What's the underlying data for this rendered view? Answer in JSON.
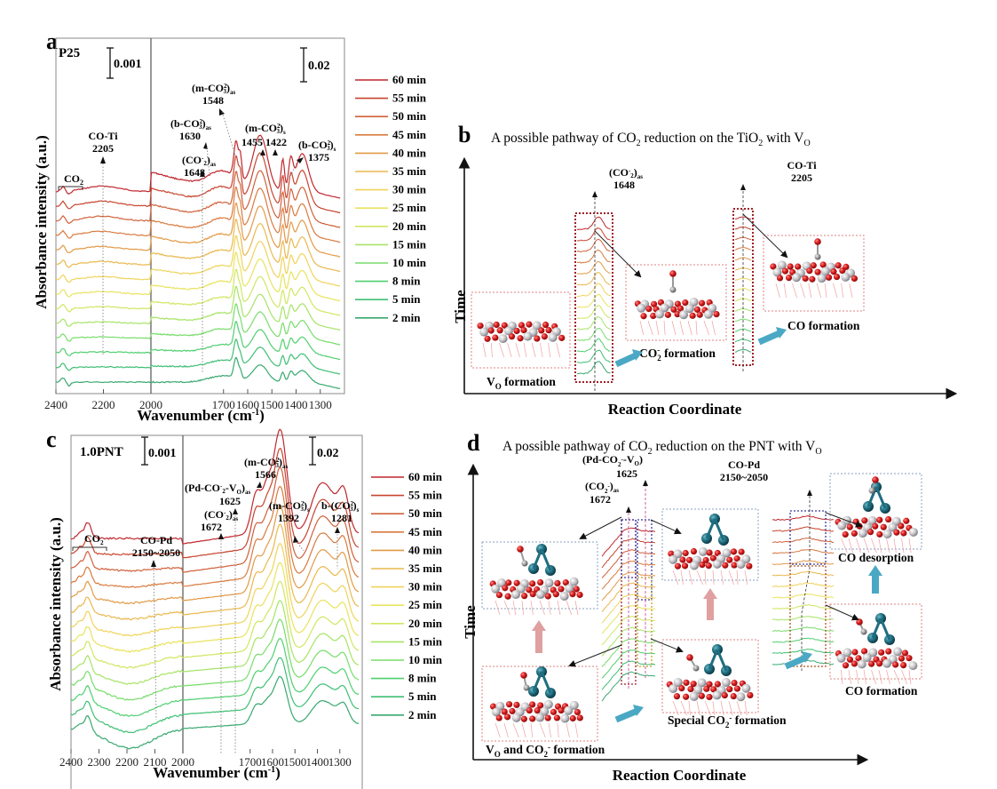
{
  "figure": {
    "panels": [
      "a",
      "b",
      "c",
      "d"
    ]
  },
  "time_series_labels": [
    "60 min",
    "55 min",
    "50 min",
    "45 min",
    "40 min",
    "35 min",
    "30 min",
    "25 min",
    "20 min",
    "15 min",
    "10 min",
    "8 min",
    "5 min",
    "2 min"
  ],
  "series_colors": [
    "#c0272d",
    "#c7452f",
    "#d0603a",
    "#d97a3e",
    "#e29a47",
    "#eab84e",
    "#f0d35a",
    "#e9e35c",
    "#cfe761",
    "#a6e466",
    "#78dc6b",
    "#4fcf6f",
    "#3fbf74",
    "#37a86e"
  ],
  "chart_data": [
    {
      "type": "line",
      "panel": "a",
      "sample": "P25",
      "title": "",
      "xlabel": "Wavenumber (cm-1)",
      "ylabel": "Absorbance intensity (a.u.)",
      "x_segments": [
        {
          "range": [
            2400,
            2000
          ],
          "ticks": [
            2400,
            2200,
            2000
          ],
          "scale_bar": "0.001"
        },
        {
          "range": [
            2000,
            1200
          ],
          "ticks": [
            1700,
            1600,
            1500,
            1400,
            1300
          ],
          "scale_bar": "0.02"
        }
      ],
      "legend": "right",
      "series_names": [
        "60 min",
        "55 min",
        "50 min",
        "45 min",
        "40 min",
        "35 min",
        "30 min",
        "25 min",
        "20 min",
        "15 min",
        "10 min",
        "8 min",
        "5 min",
        "2 min"
      ],
      "annotations": [
        {
          "label": "CO2",
          "x_range": [
            2400,
            2300
          ]
        },
        {
          "label": "CO-Ti",
          "x": 2205
        },
        {
          "label": "(CO2-)as",
          "x": 1648
        },
        {
          "label": "(b-CO3 2-)as",
          "x": 1630
        },
        {
          "label": "(m-CO3 2-)as",
          "x": 1548
        },
        {
          "label": "(m-CO3 2-)s",
          "x": 1455
        },
        {
          "label": "(m-CO3 2-)s",
          "x": 1422
        },
        {
          "label": "(b-CO3 2-)s",
          "x": 1375
        }
      ],
      "peaks": [
        2205,
        1648,
        1630,
        1548,
        1455,
        1422,
        1375
      ]
    },
    {
      "type": "line",
      "panel": "c",
      "sample": "1.0PNT",
      "title": "",
      "xlabel": "Wavenumber (cm-1)",
      "ylabel": "Absorbance intensity (a.u.)",
      "x_segments": [
        {
          "range": [
            2400,
            2000
          ],
          "ticks": [
            2400,
            2300,
            2200,
            2100,
            2000
          ],
          "scale_bar": "0.001"
        },
        {
          "range": [
            2000,
            1200
          ],
          "ticks": [
            1700,
            1600,
            1500,
            1400,
            1300
          ],
          "scale_bar": "0.02"
        }
      ],
      "legend": "right",
      "series_names": [
        "60 min",
        "55 min",
        "50 min",
        "45 min",
        "40 min",
        "35 min",
        "30 min",
        "25 min",
        "20 min",
        "15 min",
        "10 min",
        "8 min",
        "5 min",
        "2 min"
      ],
      "annotations": [
        {
          "label": "CO2",
          "x_range": [
            2400,
            2280
          ]
        },
        {
          "label": "CO-Pd",
          "x_range_text": "2150~2050"
        },
        {
          "label": "(CO2-)as",
          "x": 1672
        },
        {
          "label": "(Pd-CO2--VO)as",
          "x": 1625
        },
        {
          "label": "(m-CO3 2-)as",
          "x": 1566
        },
        {
          "label": "(m-CO3 2-)s",
          "x": 1392
        },
        {
          "label": "b-(CO3 2-)s",
          "x": 1281
        }
      ],
      "peaks": [
        1672,
        1625,
        1566,
        1392,
        1281
      ]
    }
  ],
  "panel_a": {
    "letter": "a",
    "sample": "P25",
    "scale_left": "0.001",
    "scale_right": "0.02",
    "xlabel": "Wavenumber (cm",
    "xlabel_sup": "-1",
    "xlabel_end": ")",
    "ylabel": "Absorbance intensity (a.u.)",
    "ticks": [
      "2400",
      "2200",
      "2000",
      "1700",
      "1600",
      "1500",
      "1400",
      "1300"
    ],
    "ann": {
      "co2": "CO",
      "coti": "CO-Ti",
      "coti_num": "2205",
      "co2as": "(CO",
      "co2as_num": "1648",
      "bco3as": "(b-CO",
      "bco3as_num": "1630",
      "mco3as": "(m-CO",
      "mco3as_num": "1548",
      "mco3s": "(m-CO",
      "mco3s_num": "1455 1422",
      "bco3s": "(b-CO",
      "bco3s_num": "1375"
    }
  },
  "panel_b": {
    "letter": "b",
    "title_pre": "A possible pathway of CO",
    "title_mid": " reduction on the TiO",
    "title_post": " with V",
    "title_sub_o": "O",
    "yaxis": "Time",
    "xaxis": "Reaction Coordinate",
    "peak1_label": "(CO",
    "peak1_num": "1648",
    "peak2_label": "CO-Ti",
    "peak2_num": "2205",
    "step1": "V",
    "step1_rest": " formation",
    "step2": "CO",
    "step2_rest": " formation",
    "step3": "CO formation"
  },
  "panel_c": {
    "letter": "c",
    "sample": "1.0PNT",
    "scale_left": "0.001",
    "scale_right": "0.02",
    "xlabel": "Wavenumber (cm",
    "xlabel_sup": "-1",
    "xlabel_end": ")",
    "ylabel": "Absorbance intensity (a.u.)",
    "ticks": [
      "2400",
      "2300",
      "2200",
      "2100",
      "2000",
      "1700",
      "1600",
      "1500",
      "1400",
      "1300"
    ],
    "ann": {
      "co2": "CO",
      "copd": "CO-Pd",
      "copd_num": "2150~2050",
      "co2as": "(CO",
      "co2as_num": "1672",
      "pdco2": "(Pd-CO",
      "pdco2_num": "1625",
      "mco3as": "(m-CO",
      "mco3as_num": "1566",
      "mco3s": "(m-CO",
      "mco3s_num": "1392",
      "bco3s": "b-(CO",
      "bco3s_num": "1281"
    }
  },
  "panel_d": {
    "letter": "d",
    "title_pre": "A possible pathway of CO",
    "title_mid": " reduction on the PNT with V",
    "title_sub_o": "O",
    "yaxis": "Time",
    "xaxis": "Reaction Coordinate",
    "peak1_label": "(CO",
    "peak1_num": "1672",
    "peak2_label": "(Pd-CO",
    "peak2_num": "1625",
    "peak3_label": "CO-Pd",
    "peak3_num": "2150~2050",
    "step1": "V",
    "step1_rest": "  and CO",
    "step1_end": " formation",
    "step2": "Special CO",
    "step2_end": " formation",
    "step3": "CO formation",
    "step4": "CO desorption"
  },
  "colors": {
    "oxygen": "#d42020",
    "titanium": "#c4c4c8",
    "palladium": "#1f6e80",
    "carbon": "#888888",
    "arrow_blue": "#4aa8c4",
    "arrow_pink": "#e0a0a0",
    "box_red": "#a02028",
    "box_blue": "#3a3aa0"
  }
}
